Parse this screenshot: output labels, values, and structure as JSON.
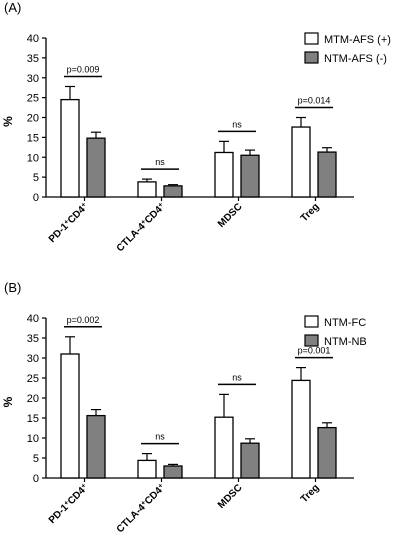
{
  "chart_data": [
    {
      "type": "bar",
      "panel_label": "(A)",
      "ylabel": "%",
      "ylim": [
        0,
        40
      ],
      "yticks": [
        0,
        5,
        10,
        15,
        20,
        25,
        30,
        35,
        40
      ],
      "categories": [
        {
          "main": "PD-1",
          "sup": "+",
          "rest": "CD4",
          "sup2": "+"
        },
        {
          "main": "CTLA-4",
          "sup": "+",
          "rest": "CD4",
          "sup2": "+"
        },
        {
          "main": "MDSC",
          "sup": "",
          "rest": "",
          "sup2": ""
        },
        {
          "main": "Treg",
          "sup": "",
          "rest": "",
          "sup2": ""
        }
      ],
      "series": [
        {
          "name": "MTM-AFS (+)",
          "color": "#ffffff",
          "values": [
            24.5,
            3.8,
            11.2,
            17.6
          ],
          "errors": [
            3.3,
            0.7,
            2.8,
            2.4
          ]
        },
        {
          "name": "NTM-AFS (-)",
          "color": "#808080",
          "values": [
            14.8,
            2.8,
            10.5,
            11.3
          ],
          "errors": [
            1.5,
            0.3,
            1.3,
            1.1
          ]
        }
      ],
      "annotations": [
        "p=0.009",
        "ns",
        "ns",
        "p=0.014"
      ],
      "legend_position": "top-right",
      "grid": false
    },
    {
      "type": "bar",
      "panel_label": "(B)",
      "ylabel": "%",
      "ylim": [
        0,
        40
      ],
      "yticks": [
        0,
        5,
        10,
        15,
        20,
        25,
        30,
        35,
        40
      ],
      "categories": [
        {
          "main": "PD-1",
          "sup": "+",
          "rest": "CD4",
          "sup2": "+"
        },
        {
          "main": "CTLA-4",
          "sup": "+",
          "rest": "CD4",
          "sup2": "+"
        },
        {
          "main": "MDSC",
          "sup": "",
          "rest": "",
          "sup2": ""
        },
        {
          "main": "Treg",
          "sup": "",
          "rest": "",
          "sup2": ""
        }
      ],
      "series": [
        {
          "name": "NTM-FC",
          "color": "#ffffff",
          "values": [
            31.0,
            4.4,
            15.2,
            24.4
          ],
          "errors": [
            4.3,
            1.7,
            5.7,
            3.2
          ]
        },
        {
          "name": "NTM-NB",
          "color": "#808080",
          "values": [
            15.6,
            3.0,
            8.7,
            12.6
          ],
          "errors": [
            1.5,
            0.4,
            1.1,
            1.2
          ]
        }
      ],
      "annotations": [
        "p=0.002",
        "ns",
        "ns",
        "p=0.001"
      ],
      "legend_position": "top-right",
      "grid": false
    }
  ]
}
